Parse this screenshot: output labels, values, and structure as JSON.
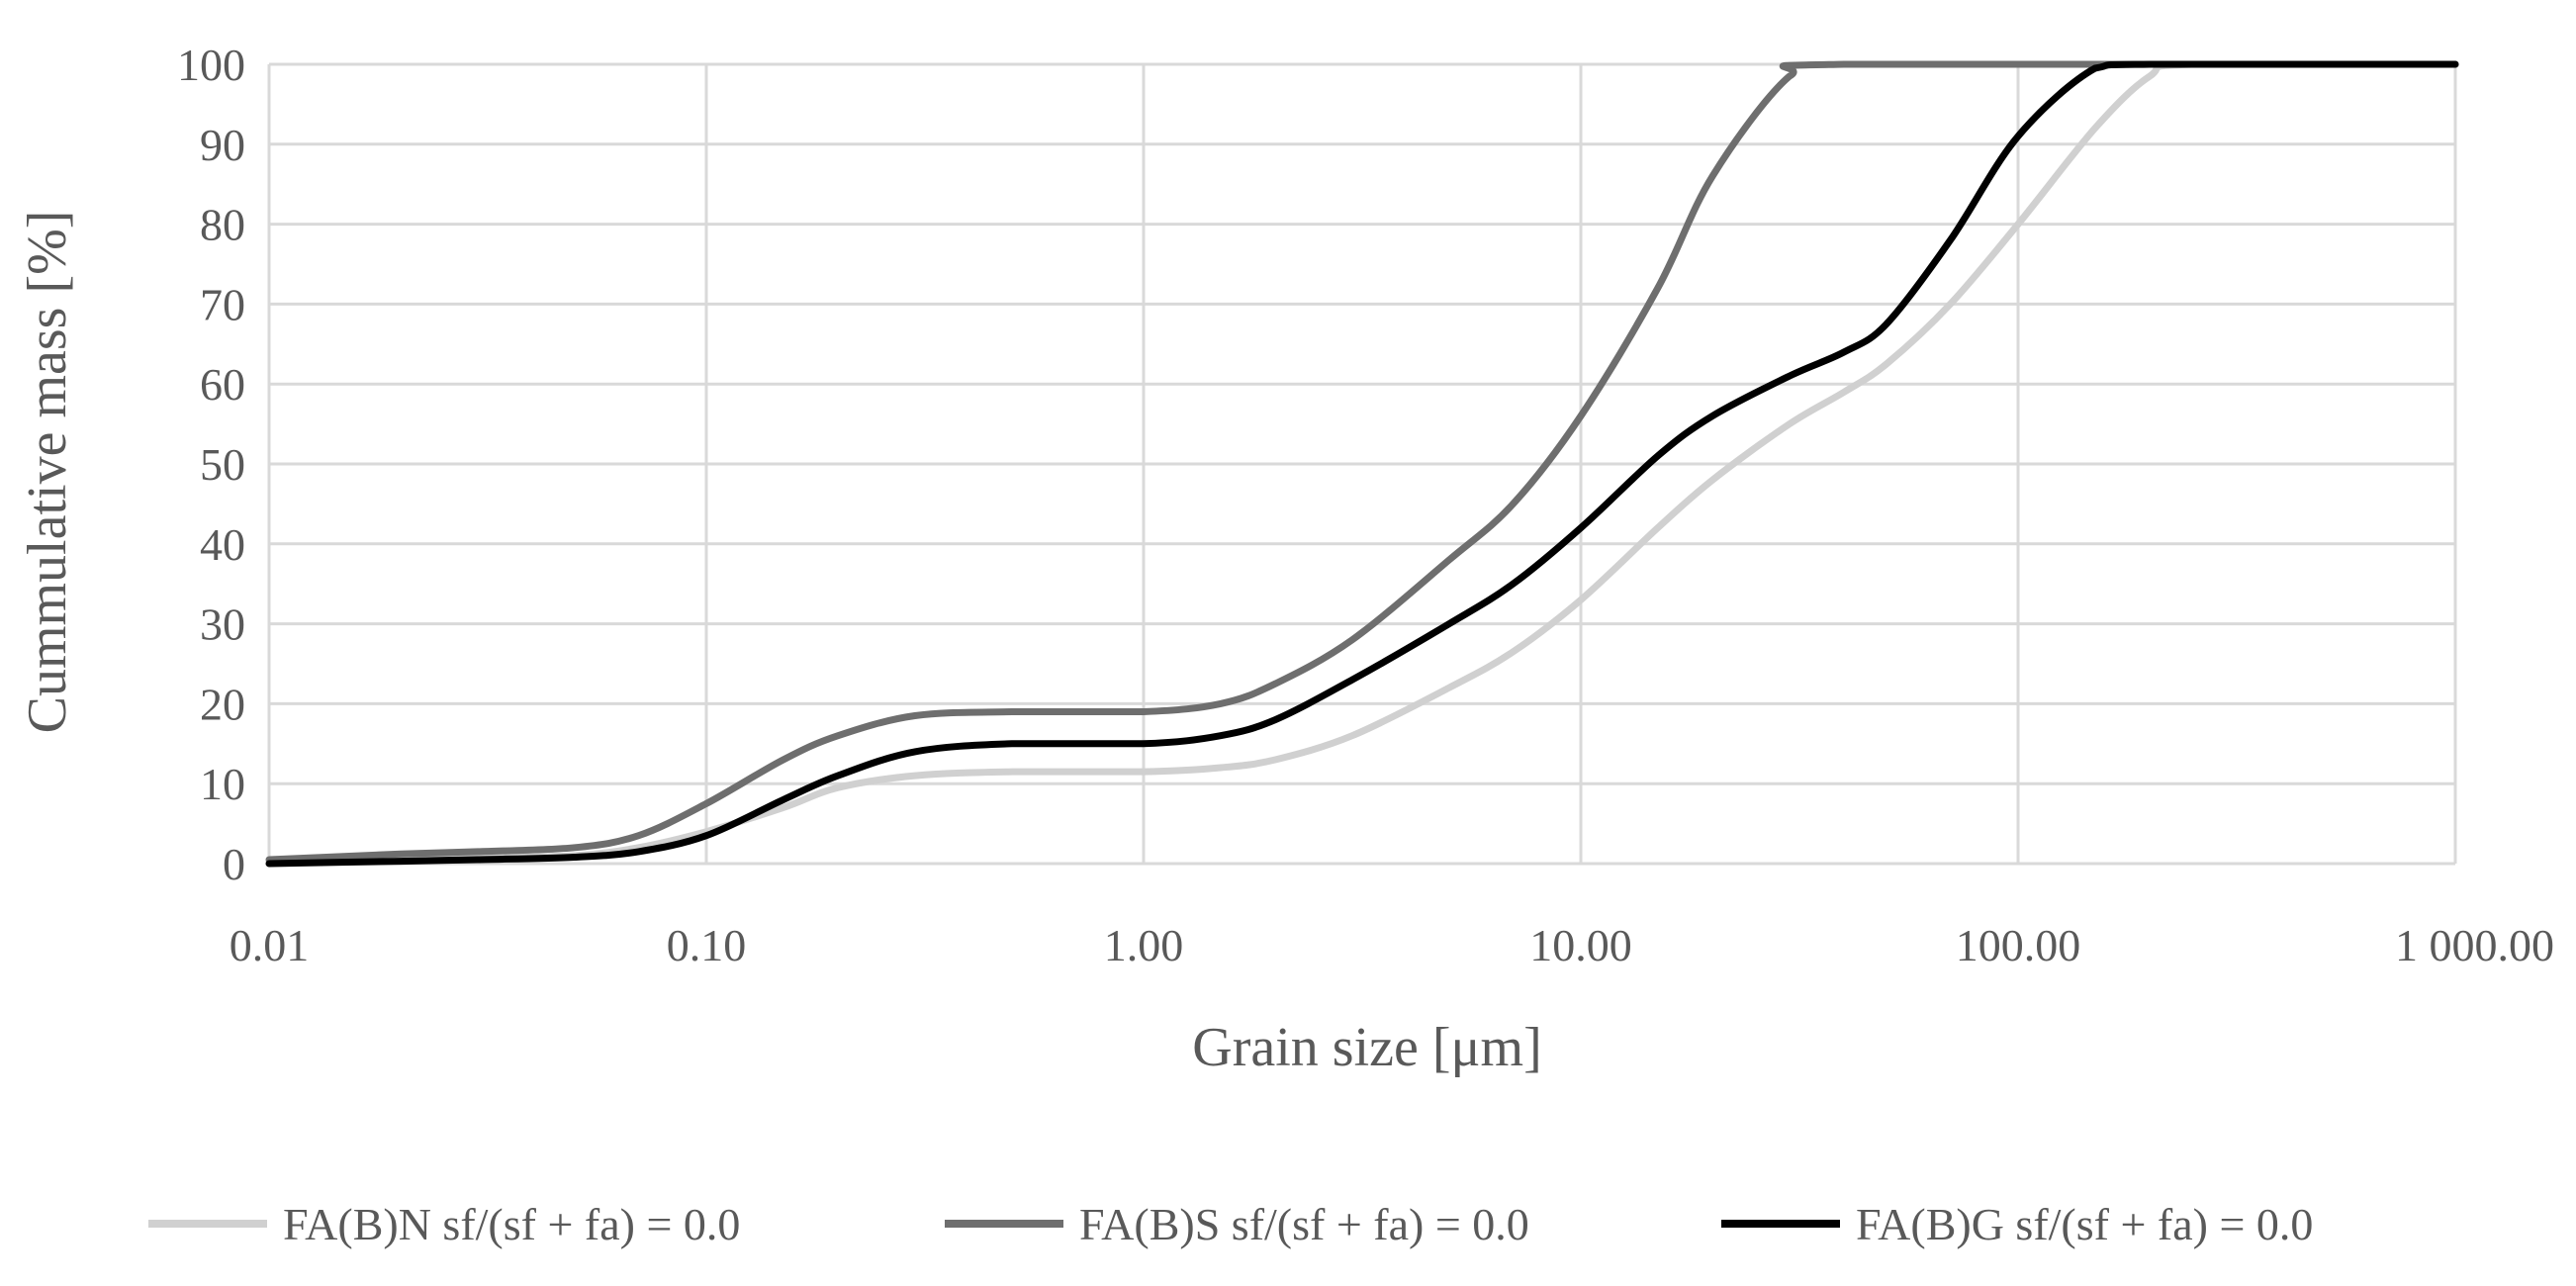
{
  "chart_data": {
    "type": "line",
    "xlabel": "Grain size [μm]",
    "ylabel": "Cummulative mass [%]",
    "x_scale": "log",
    "xlim": [
      0.01,
      1000
    ],
    "ylim": [
      0,
      100
    ],
    "grid": true,
    "legend_position": "bottom",
    "x_tick_labels": [
      "0.01",
      "0.10",
      "1.00",
      "10.00",
      "100.00",
      "1 000.00"
    ],
    "x_tick_values": [
      0.01,
      0.1,
      1,
      10,
      100,
      1000
    ],
    "y_tick_labels": [
      "0",
      "10",
      "20",
      "30",
      "40",
      "50",
      "60",
      "70",
      "80",
      "90",
      "100"
    ],
    "y_tick_values": [
      0,
      10,
      20,
      30,
      40,
      50,
      60,
      70,
      80,
      90,
      100
    ],
    "series": [
      {
        "name": "FA(B)N sf/(sf + fa) = 0.0",
        "color": "#d0d0d0",
        "points": [
          [
            0.01,
            0.2
          ],
          [
            0.02,
            0.5
          ],
          [
            0.03,
            0.7
          ],
          [
            0.05,
            1.0
          ],
          [
            0.07,
            2.0
          ],
          [
            0.1,
            4.0
          ],
          [
            0.15,
            7.0
          ],
          [
            0.2,
            9.5
          ],
          [
            0.3,
            11.0
          ],
          [
            0.5,
            11.5
          ],
          [
            1.0,
            11.5
          ],
          [
            1.5,
            12.0
          ],
          [
            2.0,
            13.0
          ],
          [
            3.0,
            16.0
          ],
          [
            5.0,
            22.0
          ],
          [
            7.0,
            26.5
          ],
          [
            10.0,
            33.0
          ],
          [
            15.0,
            42.0
          ],
          [
            20.0,
            48.0
          ],
          [
            30.0,
            55.0
          ],
          [
            40.0,
            59.0
          ],
          [
            50.0,
            62.5
          ],
          [
            70.0,
            70.0
          ],
          [
            100.0,
            80.0
          ],
          [
            150.0,
            92.0
          ],
          [
            200.0,
            98.5
          ],
          [
            250.0,
            100.0
          ],
          [
            1000.0,
            100.0
          ]
        ]
      },
      {
        "name": "FA(B)S sf/(sf + fa) = 0.0",
        "color": "#6e6e6e",
        "points": [
          [
            0.01,
            0.5
          ],
          [
            0.02,
            1.2
          ],
          [
            0.03,
            1.5
          ],
          [
            0.05,
            2.0
          ],
          [
            0.07,
            3.5
          ],
          [
            0.1,
            7.5
          ],
          [
            0.15,
            13.0
          ],
          [
            0.2,
            16.0
          ],
          [
            0.3,
            18.5
          ],
          [
            0.5,
            19.0
          ],
          [
            1.0,
            19.0
          ],
          [
            1.5,
            20.0
          ],
          [
            2.0,
            22.5
          ],
          [
            3.0,
            28.0
          ],
          [
            5.0,
            38.0
          ],
          [
            7.0,
            45.0
          ],
          [
            10.0,
            56.0
          ],
          [
            15.0,
            72.0
          ],
          [
            20.0,
            86.0
          ],
          [
            30.0,
            98.5
          ],
          [
            40.0,
            100.0
          ],
          [
            1000.0,
            100.0
          ]
        ]
      },
      {
        "name": "FA(B)G sf/(sf + fa) = 0.0",
        "color": "#000000",
        "points": [
          [
            0.01,
            0.0
          ],
          [
            0.02,
            0.3
          ],
          [
            0.03,
            0.5
          ],
          [
            0.05,
            0.8
          ],
          [
            0.07,
            1.5
          ],
          [
            0.1,
            3.5
          ],
          [
            0.15,
            8.0
          ],
          [
            0.2,
            11.0
          ],
          [
            0.3,
            14.0
          ],
          [
            0.5,
            15.0
          ],
          [
            1.0,
            15.0
          ],
          [
            1.5,
            16.0
          ],
          [
            2.0,
            18.0
          ],
          [
            3.0,
            23.0
          ],
          [
            5.0,
            30.0
          ],
          [
            7.0,
            35.0
          ],
          [
            10.0,
            42.0
          ],
          [
            15.0,
            51.0
          ],
          [
            20.0,
            56.0
          ],
          [
            30.0,
            61.0
          ],
          [
            40.0,
            64.0
          ],
          [
            50.0,
            67.5
          ],
          [
            70.0,
            78.0
          ],
          [
            100.0,
            91.0
          ],
          [
            150.0,
            99.5
          ],
          [
            200.0,
            100.0
          ],
          [
            1000.0,
            100.0
          ]
        ]
      }
    ]
  }
}
